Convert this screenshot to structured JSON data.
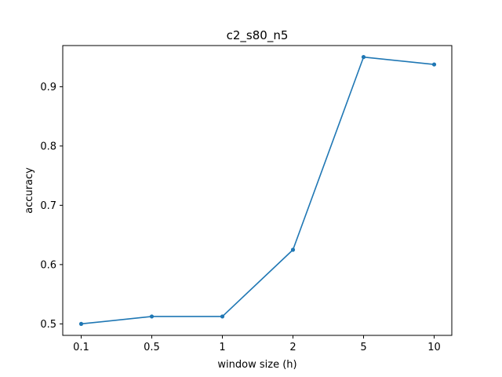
{
  "chart_data": {
    "type": "line",
    "title": "c2_s80_n5",
    "xlabel": "window size (h)",
    "ylabel": "accuracy",
    "categories": [
      "0.1",
      "0.5",
      "1",
      "2",
      "5",
      "10"
    ],
    "series": [
      {
        "values": [
          0.5,
          0.5125,
          0.5125,
          0.625,
          0.95,
          0.9375
        ],
        "color": "#1f77b4"
      }
    ],
    "ylim": [
      0.4806,
      0.9694
    ],
    "yticks": [
      0.5,
      0.6,
      0.7,
      0.8,
      0.9
    ],
    "ytick_labels": [
      "0.5",
      "0.6",
      "0.7",
      "0.8",
      "0.9"
    ],
    "grid": false,
    "legend": "none"
  }
}
